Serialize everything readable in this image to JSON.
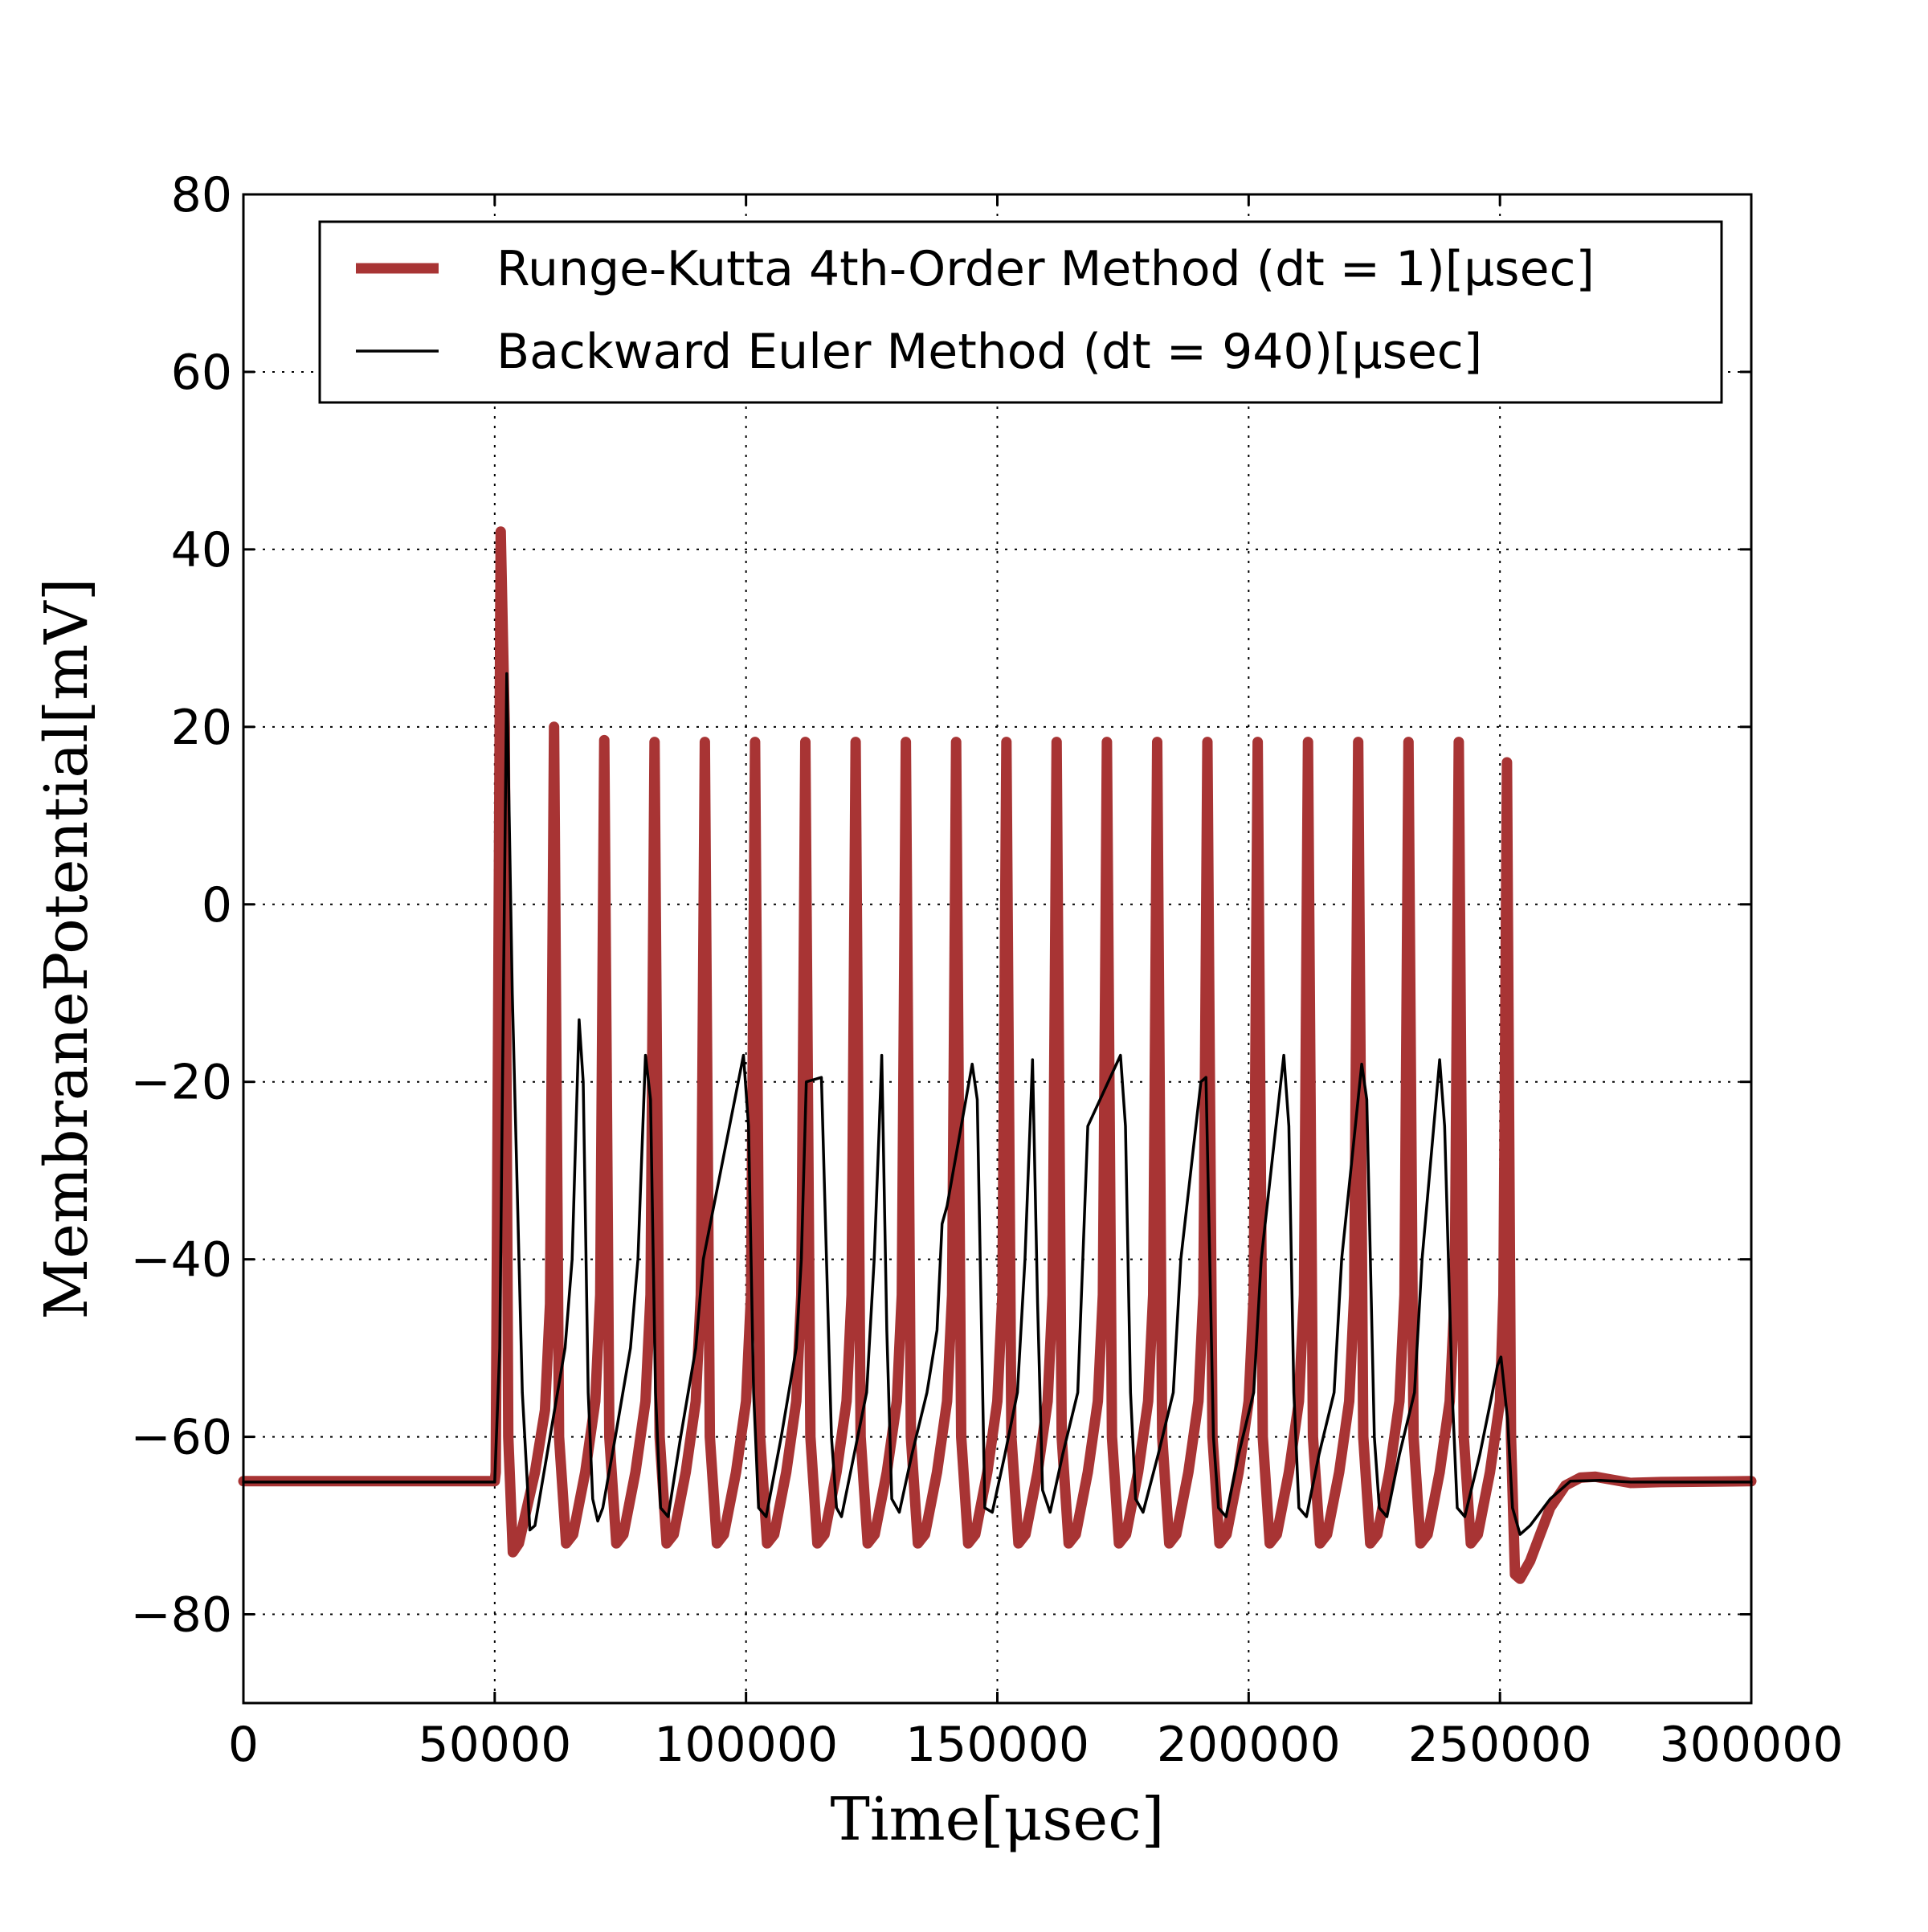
{
  "chart_data": {
    "type": "line",
    "xlabel": "Time[μsec]",
    "ylabel": "MembranePotential[mV]",
    "xlim": [
      0,
      300000
    ],
    "ylim": [
      -90,
      80
    ],
    "x_ticks": [
      "0",
      "50000",
      "100000",
      "150000",
      "200000",
      "250000",
      "300000"
    ],
    "y_ticks": [
      "80",
      "60",
      "40",
      "20",
      "0",
      "−20",
      "−40",
      "−60",
      "−80"
    ],
    "grid": true,
    "legend_position": "top",
    "series": [
      {
        "name": "Runge-Kutta 4th-Order Method (dt = 1)[μsec]",
        "color": "#a83434",
        "style": "thick",
        "points": [
          [
            0,
            -65
          ],
          [
            50000,
            -65
          ],
          [
            50200,
            -64
          ],
          [
            51200,
            42
          ],
          [
            52000,
            20
          ],
          [
            52700,
            -60
          ],
          [
            53600,
            -73
          ],
          [
            54800,
            -72
          ],
          [
            58000,
            -64
          ],
          [
            60000,
            -57
          ],
          [
            61000,
            -45
          ],
          [
            61800,
            20
          ],
          [
            62800,
            -60
          ],
          [
            64200,
            -72
          ],
          [
            65600,
            -71
          ],
          [
            68000,
            -64
          ],
          [
            70000,
            -56
          ],
          [
            71000,
            -44
          ],
          [
            71800,
            18.5
          ],
          [
            72800,
            -60
          ],
          [
            74200,
            -72
          ],
          [
            75600,
            -71
          ],
          [
            78000,
            -64
          ],
          [
            80000,
            -56
          ],
          [
            81000,
            -44
          ],
          [
            81800,
            18.3
          ],
          [
            82800,
            -60
          ],
          [
            84200,
            -72
          ],
          [
            85600,
            -71
          ],
          [
            88000,
            -64
          ],
          [
            90000,
            -56
          ],
          [
            91000,
            -44
          ],
          [
            91800,
            18.3
          ],
          [
            92800,
            -60
          ],
          [
            94200,
            -72
          ],
          [
            95600,
            -71
          ],
          [
            98000,
            -64
          ],
          [
            100000,
            -56
          ],
          [
            101000,
            -44
          ],
          [
            101800,
            18.3
          ],
          [
            102800,
            -60
          ],
          [
            104200,
            -72
          ],
          [
            105600,
            -71
          ],
          [
            108000,
            -64
          ],
          [
            110000,
            -56
          ],
          [
            111000,
            -44
          ],
          [
            111800,
            18.3
          ],
          [
            112800,
            -60
          ],
          [
            114200,
            -72
          ],
          [
            115600,
            -71
          ],
          [
            118000,
            -64
          ],
          [
            120000,
            -56
          ],
          [
            121000,
            -44
          ],
          [
            121800,
            18.3
          ],
          [
            122800,
            -60
          ],
          [
            124200,
            -72
          ],
          [
            125600,
            -71
          ],
          [
            128000,
            -64
          ],
          [
            130000,
            -56
          ],
          [
            131000,
            -44
          ],
          [
            131800,
            18.3
          ],
          [
            132800,
            -60
          ],
          [
            134200,
            -72
          ],
          [
            135600,
            -71
          ],
          [
            138000,
            -64
          ],
          [
            140000,
            -56
          ],
          [
            141000,
            -44
          ],
          [
            141800,
            18.3
          ],
          [
            142800,
            -60
          ],
          [
            144200,
            -72
          ],
          [
            145600,
            -71
          ],
          [
            148000,
            -64
          ],
          [
            150000,
            -56
          ],
          [
            151000,
            -44
          ],
          [
            151800,
            18.3
          ],
          [
            152800,
            -60
          ],
          [
            154200,
            -72
          ],
          [
            155600,
            -71
          ],
          [
            158000,
            -64
          ],
          [
            160000,
            -56
          ],
          [
            161000,
            -44
          ],
          [
            161800,
            18.3
          ],
          [
            162800,
            -60
          ],
          [
            164200,
            -72
          ],
          [
            165600,
            -71
          ],
          [
            168000,
            -64
          ],
          [
            170000,
            -56
          ],
          [
            171000,
            -44
          ],
          [
            171800,
            18.3
          ],
          [
            172800,
            -60
          ],
          [
            174200,
            -72
          ],
          [
            175600,
            -71
          ],
          [
            178000,
            -64
          ],
          [
            180000,
            -56
          ],
          [
            181000,
            -44
          ],
          [
            181800,
            18.3
          ],
          [
            182800,
            -60
          ],
          [
            184200,
            -72
          ],
          [
            185600,
            -71
          ],
          [
            188000,
            -64
          ],
          [
            190000,
            -56
          ],
          [
            191000,
            -44
          ],
          [
            191800,
            18.3
          ],
          [
            192800,
            -60
          ],
          [
            194200,
            -72
          ],
          [
            195600,
            -71
          ],
          [
            198000,
            -64
          ],
          [
            200000,
            -56
          ],
          [
            201000,
            -44
          ],
          [
            201800,
            18.3
          ],
          [
            202800,
            -60
          ],
          [
            204200,
            -72
          ],
          [
            205600,
            -71
          ],
          [
            208000,
            -64
          ],
          [
            210000,
            -56
          ],
          [
            211000,
            -44
          ],
          [
            211800,
            18.3
          ],
          [
            212800,
            -60
          ],
          [
            214200,
            -72
          ],
          [
            215600,
            -71
          ],
          [
            218000,
            -64
          ],
          [
            220000,
            -56
          ],
          [
            221000,
            -44
          ],
          [
            221800,
            18.3
          ],
          [
            222800,
            -60
          ],
          [
            224200,
            -72
          ],
          [
            225600,
            -71
          ],
          [
            228000,
            -64
          ],
          [
            230000,
            -56
          ],
          [
            231000,
            -44
          ],
          [
            231800,
            18.3
          ],
          [
            232800,
            -60
          ],
          [
            234200,
            -72
          ],
          [
            235600,
            -71
          ],
          [
            238000,
            -64
          ],
          [
            240000,
            -56
          ],
          [
            241000,
            -44
          ],
          [
            241800,
            18.3
          ],
          [
            242800,
            -60
          ],
          [
            244200,
            -72
          ],
          [
            245600,
            -71
          ],
          [
            248000,
            -64
          ],
          [
            250000,
            -56
          ],
          [
            250700,
            -44
          ],
          [
            251400,
            16
          ],
          [
            252200,
            -60
          ],
          [
            253000,
            -75.5
          ],
          [
            254000,
            -76
          ],
          [
            256000,
            -74
          ],
          [
            258000,
            -71
          ],
          [
            260000,
            -68
          ],
          [
            263000,
            -65.5
          ],
          [
            266000,
            -64.6
          ],
          [
            269000,
            -64.5
          ],
          [
            272000,
            -64.8
          ],
          [
            276000,
            -65.2
          ],
          [
            282000,
            -65.1
          ],
          [
            300000,
            -65
          ]
        ]
      },
      {
        "name": "Backward Euler Method (dt = 940)[μsec]",
        "color": "#000000",
        "style": "thin",
        "points": [
          [
            0,
            -65.1
          ],
          [
            50000,
            -65.1
          ],
          [
            51000,
            -50
          ],
          [
            52400,
            26
          ],
          [
            53500,
            -10
          ],
          [
            55500,
            -55
          ],
          [
            57000,
            -70.5
          ],
          [
            58000,
            -70
          ],
          [
            61000,
            -60
          ],
          [
            64000,
            -50
          ],
          [
            65400,
            -40
          ],
          [
            66800,
            -13
          ],
          [
            67600,
            -20
          ],
          [
            68600,
            -55
          ],
          [
            69500,
            -67
          ],
          [
            70500,
            -69.5
          ],
          [
            71500,
            -68
          ],
          [
            74000,
            -60
          ],
          [
            77000,
            -50
          ],
          [
            78500,
            -40
          ],
          [
            80000,
            -17
          ],
          [
            81000,
            -22
          ],
          [
            82000,
            -55
          ],
          [
            83000,
            -68
          ],
          [
            84500,
            -69
          ],
          [
            87000,
            -60
          ],
          [
            90000,
            -50
          ],
          [
            91500,
            -40
          ],
          [
            99500,
            -17
          ],
          [
            100500,
            -25
          ],
          [
            101500,
            -55
          ],
          [
            102500,
            -68
          ],
          [
            104000,
            -69
          ],
          [
            107000,
            -60
          ],
          [
            110000,
            -50
          ],
          [
            111000,
            -40
          ],
          [
            112000,
            -20
          ],
          [
            115000,
            -19.5
          ],
          [
            117000,
            -60
          ],
          [
            118000,
            -68
          ],
          [
            119000,
            -69
          ],
          [
            121500,
            -62
          ],
          [
            124000,
            -55
          ],
          [
            125500,
            -40
          ],
          [
            126500,
            -25
          ],
          [
            127000,
            -17
          ],
          [
            128000,
            -48
          ],
          [
            129000,
            -67
          ],
          [
            130500,
            -68.5
          ],
          [
            133000,
            -62
          ],
          [
            136000,
            -55
          ],
          [
            138000,
            -48
          ],
          [
            139000,
            -36
          ],
          [
            140000,
            -34
          ],
          [
            145000,
            -18
          ],
          [
            146000,
            -22
          ],
          [
            147500,
            -68
          ],
          [
            149000,
            -68.5
          ],
          [
            151500,
            -62
          ],
          [
            154000,
            -55
          ],
          [
            155500,
            -40
          ],
          [
            156500,
            -25
          ],
          [
            157000,
            -17.5
          ],
          [
            158000,
            -45
          ],
          [
            159000,
            -66
          ],
          [
            160500,
            -68.5
          ],
          [
            163000,
            -62
          ],
          [
            166000,
            -55
          ],
          [
            167000,
            -40
          ],
          [
            168000,
            -25
          ],
          [
            174500,
            -17
          ],
          [
            175500,
            -25
          ],
          [
            176500,
            -55
          ],
          [
            177500,
            -67
          ],
          [
            179000,
            -68.5
          ],
          [
            182000,
            -62
          ],
          [
            185000,
            -55
          ],
          [
            186500,
            -40
          ],
          [
            190500,
            -20
          ],
          [
            191500,
            -19.5
          ],
          [
            193000,
            -60
          ],
          [
            194000,
            -68
          ],
          [
            195500,
            -69
          ],
          [
            198000,
            -62
          ],
          [
            201000,
            -55
          ],
          [
            202500,
            -40
          ],
          [
            207000,
            -17
          ],
          [
            208000,
            -25
          ],
          [
            209000,
            -55
          ],
          [
            210000,
            -68
          ],
          [
            211500,
            -69
          ],
          [
            214000,
            -62
          ],
          [
            217000,
            -55
          ],
          [
            218500,
            -40
          ],
          [
            222500,
            -18
          ],
          [
            223500,
            -22
          ],
          [
            225000,
            -60
          ],
          [
            226000,
            -68
          ],
          [
            227500,
            -69
          ],
          [
            230000,
            -62
          ],
          [
            233000,
            -55
          ],
          [
            234500,
            -40
          ],
          [
            238000,
            -17.5
          ],
          [
            239000,
            -25
          ],
          [
            240500,
            -55
          ],
          [
            241500,
            -68
          ],
          [
            243000,
            -69
          ],
          [
            246000,
            -62
          ],
          [
            248500,
            -55
          ],
          [
            249500,
            -52
          ],
          [
            250200,
            -51
          ],
          [
            251500,
            -58
          ],
          [
            252500,
            -68
          ],
          [
            254000,
            -71
          ],
          [
            256000,
            -70
          ],
          [
            260000,
            -67
          ],
          [
            264000,
            -65
          ],
          [
            270000,
            -64.9
          ],
          [
            276000,
            -65.1
          ],
          [
            300000,
            -65.1
          ]
        ]
      }
    ]
  }
}
